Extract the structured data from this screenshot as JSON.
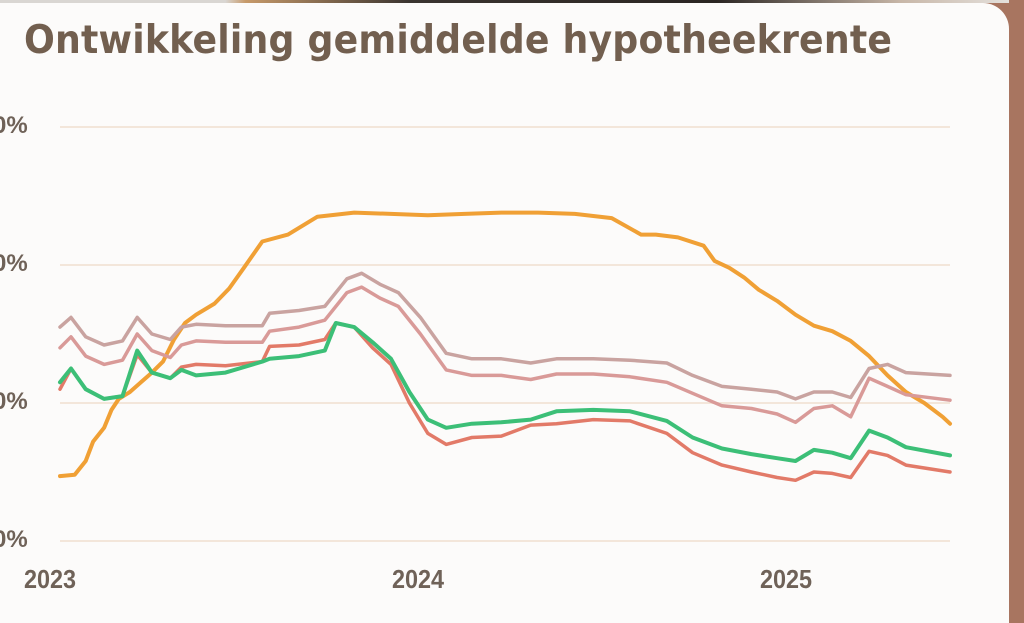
{
  "page": {
    "title": "Ontwikkeling gemiddelde hypotheekrente",
    "colors": {
      "card_background": "#fcfbfa",
      "frame_brown": "#a87560",
      "title_text": "#725f4f",
      "gridline": "#f3e6da"
    }
  },
  "chart_data": {
    "type": "line",
    "title": "Ontwikkeling gemiddelde hypotheekrente",
    "xlabel": "",
    "ylabel": "",
    "y_tick_labels_visible": [
      "0%",
      "0%",
      "0%",
      "0%"
    ],
    "y_ticks": [
      5,
      4,
      3,
      2
    ],
    "ylim": [
      2,
      5
    ],
    "x_tick_labels": [
      "2023",
      "2024",
      "2025"
    ],
    "x_ticks": [
      2023.0,
      2024.0,
      2025.0
    ],
    "xlim": [
      2023.0,
      2025.42
    ],
    "grid": true,
    "legend": "none",
    "series": [
      {
        "name": "orange",
        "color": "#f0a035",
        "x": [
          2023.0,
          2023.04,
          2023.07,
          2023.09,
          2023.12,
          2023.14,
          2023.16,
          2023.19,
          2023.22,
          2023.25,
          2023.28,
          2023.31,
          2023.34,
          2023.37,
          2023.42,
          2023.46,
          2023.5,
          2023.55,
          2023.62,
          2023.7,
          2023.8,
          2023.9,
          2024.0,
          2024.1,
          2024.2,
          2024.3,
          2024.4,
          2024.5,
          2024.58,
          2024.62,
          2024.68,
          2024.75,
          2024.78,
          2024.82,
          2024.86,
          2024.9,
          2024.95,
          2025.0,
          2025.05,
          2025.1,
          2025.15,
          2025.2,
          2025.25,
          2025.3,
          2025.35,
          2025.4,
          2025.42
        ],
        "values": [
          2.47,
          2.48,
          2.58,
          2.72,
          2.82,
          2.95,
          3.03,
          3.08,
          3.15,
          3.22,
          3.3,
          3.46,
          3.58,
          3.64,
          3.72,
          3.83,
          3.98,
          4.17,
          4.22,
          4.35,
          4.38,
          4.37,
          4.36,
          4.37,
          4.38,
          4.38,
          4.37,
          4.34,
          4.22,
          4.22,
          4.2,
          4.14,
          4.03,
          3.98,
          3.91,
          3.82,
          3.74,
          3.64,
          3.56,
          3.52,
          3.45,
          3.34,
          3.2,
          3.08,
          3.0,
          2.9,
          2.85
        ]
      },
      {
        "name": "mauve",
        "color": "#c9a3a0",
        "x": [
          2023.0,
          2023.03,
          2023.07,
          2023.12,
          2023.17,
          2023.21,
          2023.25,
          2023.3,
          2023.33,
          2023.37,
          2023.45,
          2023.55,
          2023.57,
          2023.65,
          2023.72,
          2023.78,
          2023.82,
          2023.87,
          2023.92,
          2023.98,
          2024.05,
          2024.12,
          2024.2,
          2024.28,
          2024.35,
          2024.45,
          2024.55,
          2024.65,
          2024.72,
          2024.8,
          2024.88,
          2024.95,
          2025.0,
          2025.05,
          2025.1,
          2025.15,
          2025.2,
          2025.25,
          2025.3,
          2025.42
        ],
        "values": [
          3.55,
          3.62,
          3.48,
          3.42,
          3.45,
          3.62,
          3.5,
          3.46,
          3.55,
          3.57,
          3.56,
          3.56,
          3.65,
          3.67,
          3.7,
          3.9,
          3.94,
          3.86,
          3.8,
          3.62,
          3.36,
          3.32,
          3.32,
          3.29,
          3.32,
          3.32,
          3.31,
          3.29,
          3.2,
          3.12,
          3.1,
          3.08,
          3.03,
          3.08,
          3.08,
          3.04,
          3.25,
          3.28,
          3.22,
          3.2
        ]
      },
      {
        "name": "rose",
        "color": "#d99a98",
        "x": [
          2023.0,
          2023.03,
          2023.07,
          2023.12,
          2023.17,
          2023.21,
          2023.25,
          2023.3,
          2023.33,
          2023.37,
          2023.45,
          2023.55,
          2023.57,
          2023.65,
          2023.72,
          2023.78,
          2023.82,
          2023.87,
          2023.92,
          2023.98,
          2024.05,
          2024.12,
          2024.2,
          2024.28,
          2024.35,
          2024.45,
          2024.55,
          2024.65,
          2024.72,
          2024.8,
          2024.88,
          2024.95,
          2025.0,
          2025.05,
          2025.1,
          2025.15,
          2025.2,
          2025.25,
          2025.3,
          2025.42
        ],
        "values": [
          3.4,
          3.48,
          3.34,
          3.28,
          3.31,
          3.5,
          3.38,
          3.33,
          3.42,
          3.45,
          3.44,
          3.44,
          3.52,
          3.55,
          3.6,
          3.8,
          3.84,
          3.76,
          3.7,
          3.5,
          3.24,
          3.2,
          3.2,
          3.17,
          3.21,
          3.21,
          3.19,
          3.15,
          3.07,
          2.98,
          2.96,
          2.92,
          2.86,
          2.96,
          2.98,
          2.9,
          3.18,
          3.12,
          3.06,
          3.02
        ]
      },
      {
        "name": "red",
        "color": "#e27a68",
        "x": [
          2023.0,
          2023.03,
          2023.07,
          2023.12,
          2023.17,
          2023.21,
          2023.25,
          2023.3,
          2023.33,
          2023.37,
          2023.45,
          2023.55,
          2023.57,
          2023.65,
          2023.72,
          2023.75,
          2023.8,
          2023.85,
          2023.9,
          2023.95,
          2024.0,
          2024.05,
          2024.12,
          2024.2,
          2024.28,
          2024.35,
          2024.45,
          2024.55,
          2024.65,
          2024.72,
          2024.8,
          2024.88,
          2024.95,
          2025.0,
          2025.05,
          2025.1,
          2025.15,
          2025.2,
          2025.25,
          2025.3,
          2025.42
        ],
        "values": [
          3.1,
          3.25,
          3.1,
          3.03,
          3.05,
          3.35,
          3.22,
          3.18,
          3.26,
          3.28,
          3.27,
          3.3,
          3.41,
          3.42,
          3.46,
          3.58,
          3.55,
          3.4,
          3.28,
          3.0,
          2.78,
          2.7,
          2.75,
          2.76,
          2.84,
          2.85,
          2.88,
          2.87,
          2.78,
          2.64,
          2.55,
          2.5,
          2.46,
          2.44,
          2.5,
          2.49,
          2.46,
          2.65,
          2.62,
          2.55,
          2.5
        ]
      },
      {
        "name": "green",
        "color": "#3cbf77",
        "x": [
          2023.0,
          2023.03,
          2023.07,
          2023.12,
          2023.17,
          2023.21,
          2023.25,
          2023.3,
          2023.33,
          2023.37,
          2023.45,
          2023.55,
          2023.57,
          2023.65,
          2023.72,
          2023.75,
          2023.8,
          2023.85,
          2023.9,
          2023.95,
          2024.0,
          2024.05,
          2024.12,
          2024.2,
          2024.28,
          2024.35,
          2024.45,
          2024.55,
          2024.65,
          2024.72,
          2024.8,
          2024.88,
          2024.95,
          2025.0,
          2025.05,
          2025.1,
          2025.15,
          2025.2,
          2025.25,
          2025.3,
          2025.42
        ],
        "values": [
          3.15,
          3.25,
          3.1,
          3.03,
          3.05,
          3.38,
          3.22,
          3.18,
          3.24,
          3.2,
          3.22,
          3.3,
          3.32,
          3.34,
          3.38,
          3.58,
          3.55,
          3.44,
          3.32,
          3.08,
          2.88,
          2.82,
          2.85,
          2.86,
          2.88,
          2.94,
          2.95,
          2.94,
          2.87,
          2.75,
          2.67,
          2.63,
          2.6,
          2.58,
          2.66,
          2.64,
          2.6,
          2.8,
          2.75,
          2.68,
          2.62
        ]
      }
    ]
  }
}
